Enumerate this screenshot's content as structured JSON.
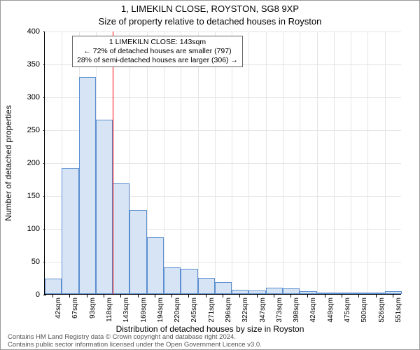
{
  "title_main": "1, LIMEKILN CLOSE, ROYSTON, SG8 9XP",
  "title_sub": "Size of property relative to detached houses in Royston",
  "ylabel": "Number of detached properties",
  "xlabel": "Distribution of detached houses by size in Royston",
  "annotation": {
    "line1": "1 LIMEKILN CLOSE: 143sqm",
    "line2": "← 72% of detached houses are smaller (797)",
    "line3": "28% of semi-detached houses are larger (306) →"
  },
  "footer": {
    "line1": "Contains HM Land Registry data © Crown copyright and database right 2024.",
    "line2": "Contains public sector information licensed under the Open Government Licence v3.0."
  },
  "chart": {
    "type": "histogram",
    "ylim": [
      0,
      400
    ],
    "yticks": [
      0,
      50,
      100,
      150,
      200,
      250,
      300,
      350,
      400
    ],
    "xticks": [
      "42sqm",
      "67sqm",
      "93sqm",
      "118sqm",
      "143sqm",
      "169sqm",
      "194sqm",
      "220sqm",
      "245sqm",
      "271sqm",
      "296sqm",
      "322sqm",
      "347sqm",
      "373sqm",
      "398sqm",
      "424sqm",
      "449sqm",
      "475sqm",
      "500sqm",
      "526sqm",
      "551sqm"
    ],
    "bars": [
      23,
      192,
      330,
      265,
      168,
      128,
      86,
      40,
      38,
      25,
      18,
      6,
      5,
      10,
      8,
      4,
      0,
      0,
      1,
      1,
      4
    ],
    "bar_fill": "#d6e4f5",
    "bar_stroke": "#5b8fcf",
    "bar_stroke_width": 1,
    "grid_color": "#e5e5e5",
    "background": "#ffffff",
    "reference_line": {
      "x_index_after": 4,
      "color": "#ff0000",
      "width": 1
    },
    "bar_gap_ratio": 0.0,
    "title_fontsize": 13,
    "label_fontsize": 12,
    "tick_fontsize": 11
  }
}
